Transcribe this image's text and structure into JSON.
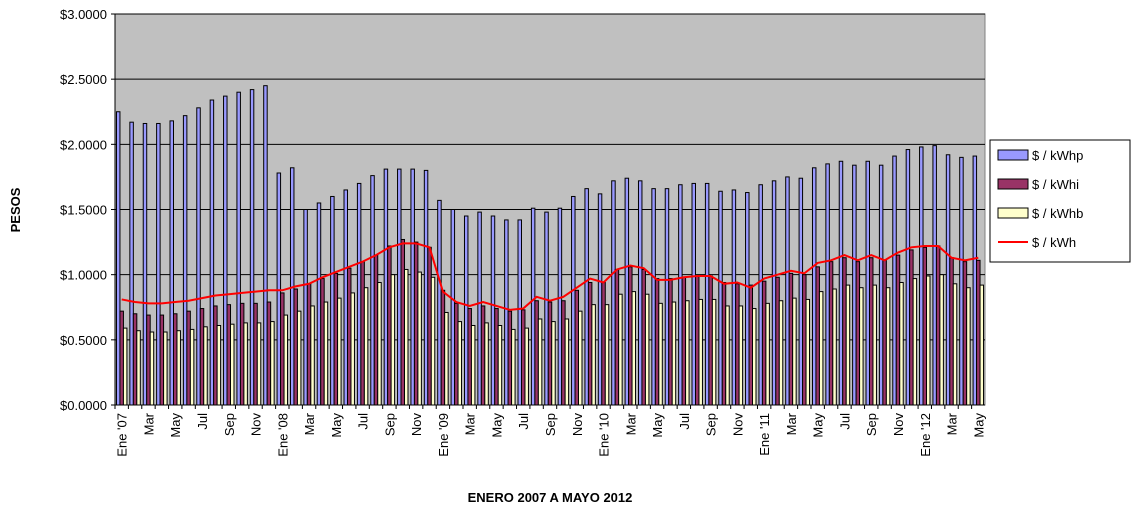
{
  "chart_data": {
    "type": "bar_line",
    "x_label": "ENERO 2007  A  MAYO  2012",
    "y_label": "PESOS",
    "categories": [
      "Ene '07",
      null,
      "Mar",
      null,
      "May",
      null,
      "Jul",
      null,
      "Sep",
      null,
      "Nov",
      null,
      "Ene '08",
      null,
      "Mar",
      null,
      "May",
      null,
      "Jul",
      null,
      "Sep",
      null,
      "Nov",
      null,
      "Ene '09",
      null,
      "Mar",
      null,
      "May",
      null,
      "Jul",
      null,
      "Sep",
      null,
      "Nov",
      null,
      "Ene '10",
      null,
      "Mar",
      null,
      "May",
      null,
      "Jul",
      null,
      "Sep",
      null,
      "Nov",
      null,
      "Ene '11",
      null,
      "Mar",
      null,
      "May",
      null,
      "Jul",
      null,
      "Sep",
      null,
      "Nov",
      null,
      "Ene '12",
      null,
      "Mar",
      null,
      "May"
    ],
    "series": [
      {
        "name": "$ / kWhp",
        "kind": "bar",
        "color": "#9999ff",
        "values": [
          2.25,
          2.17,
          2.16,
          2.16,
          2.18,
          2.22,
          2.28,
          2.34,
          2.37,
          2.4,
          2.42,
          2.45,
          1.78,
          1.82,
          1.5,
          1.55,
          1.6,
          1.65,
          1.7,
          1.76,
          1.81,
          1.81,
          1.81,
          1.8,
          1.57,
          1.5,
          1.45,
          1.48,
          1.45,
          1.42,
          1.42,
          1.51,
          1.48,
          1.51,
          1.6,
          1.66,
          1.62,
          1.72,
          1.74,
          1.72,
          1.66,
          1.66,
          1.69,
          1.7,
          1.7,
          1.64,
          1.65,
          1.63,
          1.69,
          1.72,
          1.75,
          1.74,
          1.82,
          1.85,
          1.87,
          1.84,
          1.87,
          1.84,
          1.91,
          1.96,
          1.98,
          1.99,
          1.92,
          1.9,
          1.91
        ]
      },
      {
        "name": "$ / kWhi",
        "kind": "bar",
        "color": "#993366",
        "values": [
          0.72,
          0.7,
          0.69,
          0.69,
          0.7,
          0.72,
          0.74,
          0.76,
          0.77,
          0.78,
          0.78,
          0.79,
          0.86,
          0.89,
          0.93,
          0.97,
          1.01,
          1.05,
          1.1,
          1.15,
          1.22,
          1.27,
          1.25,
          1.21,
          0.88,
          0.78,
          0.74,
          0.76,
          0.74,
          0.72,
          0.73,
          0.8,
          0.79,
          0.8,
          0.88,
          0.94,
          0.94,
          1.04,
          1.06,
          1.04,
          0.97,
          0.97,
          0.98,
          0.99,
          0.99,
          0.94,
          0.93,
          0.92,
          0.95,
          0.98,
          1.01,
          1.0,
          1.06,
          1.1,
          1.13,
          1.1,
          1.13,
          1.11,
          1.15,
          1.19,
          1.21,
          1.22,
          1.13,
          1.1,
          1.11
        ]
      },
      {
        "name": "$ / kWhb",
        "kind": "bar",
        "color": "#ffffcc",
        "values": [
          0.59,
          0.57,
          0.56,
          0.56,
          0.57,
          0.58,
          0.6,
          0.61,
          0.62,
          0.63,
          0.63,
          0.64,
          0.69,
          0.72,
          0.76,
          0.79,
          0.82,
          0.86,
          0.9,
          0.94,
          1.0,
          1.04,
          1.02,
          0.98,
          0.71,
          0.64,
          0.61,
          0.63,
          0.61,
          0.58,
          0.59,
          0.66,
          0.64,
          0.66,
          0.72,
          0.77,
          0.77,
          0.85,
          0.87,
          0.85,
          0.78,
          0.79,
          0.8,
          0.81,
          0.81,
          0.76,
          0.76,
          0.74,
          0.78,
          0.8,
          0.82,
          0.81,
          0.87,
          0.89,
          0.92,
          0.9,
          0.92,
          0.9,
          0.94,
          0.97,
          0.99,
          1.0,
          0.93,
          0.9,
          0.92
        ]
      },
      {
        "name": "$ / kWh",
        "kind": "line",
        "color": "#ff0000",
        "values": [
          0.81,
          0.79,
          0.78,
          0.78,
          0.79,
          0.8,
          0.82,
          0.84,
          0.85,
          0.86,
          0.87,
          0.88,
          0.88,
          0.91,
          0.93,
          0.98,
          1.02,
          1.06,
          1.1,
          1.15,
          1.21,
          1.24,
          1.24,
          1.21,
          0.87,
          0.79,
          0.76,
          0.79,
          0.76,
          0.73,
          0.74,
          0.83,
          0.8,
          0.83,
          0.9,
          0.97,
          0.94,
          1.04,
          1.07,
          1.05,
          0.96,
          0.96,
          0.98,
          0.99,
          0.99,
          0.93,
          0.94,
          0.9,
          0.97,
          1.0,
          1.03,
          1.01,
          1.09,
          1.11,
          1.15,
          1.11,
          1.15,
          1.11,
          1.17,
          1.21,
          1.22,
          1.22,
          1.13,
          1.11,
          1.13
        ]
      }
    ],
    "ylim": [
      0,
      3
    ],
    "yticks": [
      {
        "value": 0,
        "label": "$0.0000"
      },
      {
        "value": 0.5,
        "label": "$0.5000"
      },
      {
        "value": 1,
        "label": "$1.0000"
      },
      {
        "value": 1.5,
        "label": "$1.5000"
      },
      {
        "value": 2,
        "label": "$2.0000"
      },
      {
        "value": 2.5,
        "label": "$2.5000"
      },
      {
        "value": 3,
        "label": "$3.0000"
      }
    ],
    "grid": true,
    "plot_background": "#c0c0c0",
    "legend": "right"
  }
}
